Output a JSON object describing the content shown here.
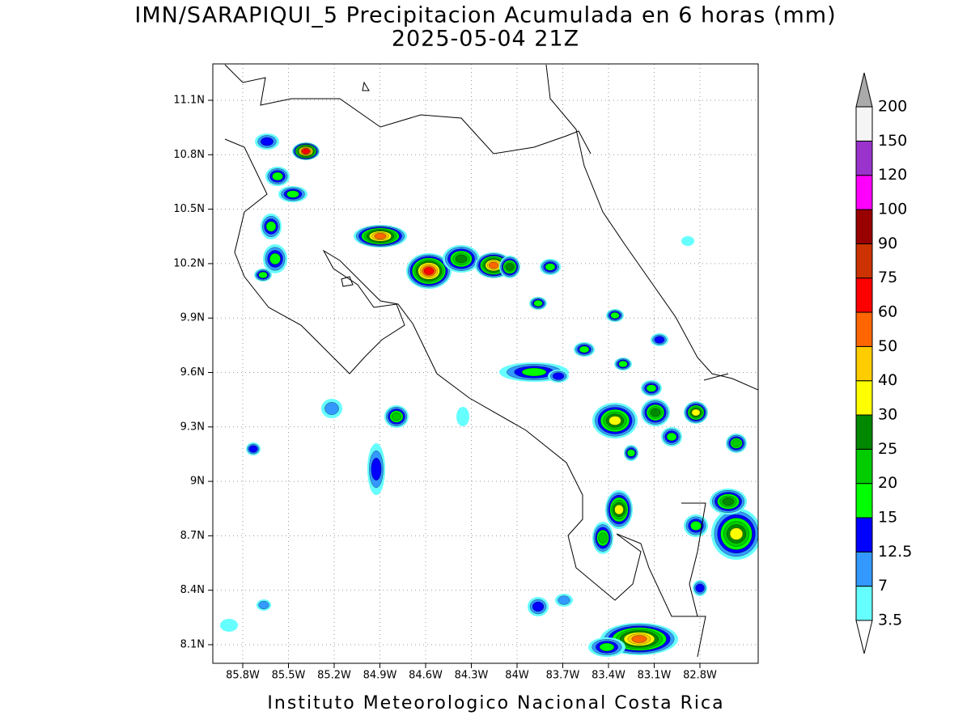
{
  "title": "IMN/SARAPIQUI_5 Precipitacion Acumulada en 6 horas (mm)",
  "subtitle": "2025-05-04 21Z",
  "lat_labels": [
    "11.1N",
    "10.8N",
    "10.5N",
    "10.2N",
    "9.9N",
    "9.6N",
    "9.3N",
    "9N",
    "8.7N",
    "8.4N",
    "8.1N"
  ],
  "lon_labels": [
    "85.8W",
    "85.5W",
    "85.2W",
    "84.9W",
    "84.6W",
    "84.3W",
    "84W",
    "83.7W",
    "83.4W",
    "83.1W",
    "82.8W"
  ],
  "colorbar": {
    "levels": [
      3.5,
      7,
      12.5,
      15,
      20,
      25,
      30,
      40,
      50,
      60,
      75,
      90,
      100,
      120,
      150,
      200
    ],
    "colors": [
      "#66ffff",
      "#3399ff",
      "#0000ff",
      "#00ff00",
      "#00cc00",
      "#008800",
      "#ffff00",
      "#ffcc00",
      "#ff6600",
      "#ff0000",
      "#cc3300",
      "#990000",
      "#ff00ff",
      "#9933cc",
      "#f5f5f5"
    ],
    "under_color": "#ffffff",
    "over_color": "#aaaaaa"
  },
  "footer": "Instituto Meteorologico Nacional Costa Rica"
}
